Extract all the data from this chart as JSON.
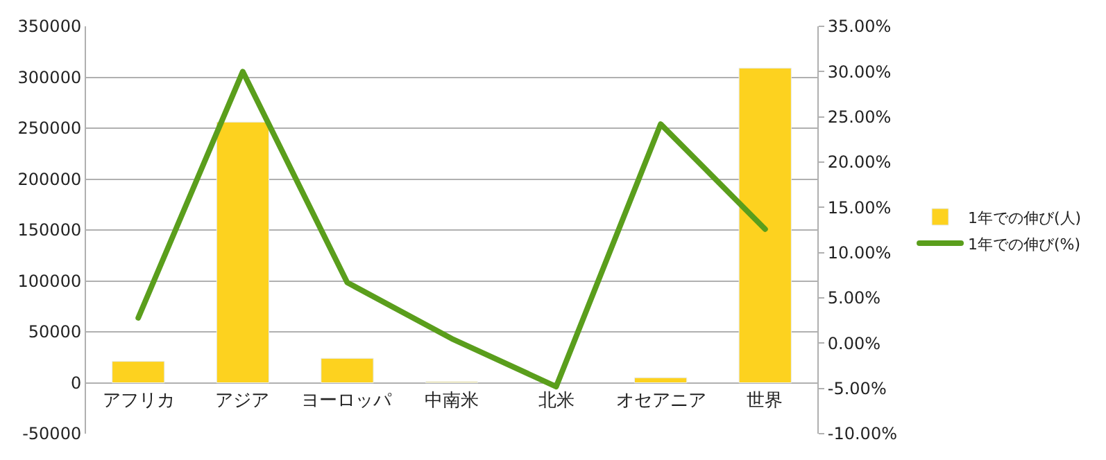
{
  "chart_data": {
    "type": "bar",
    "categories": [
      "アフリカ",
      "アジア",
      "ヨーロッパ",
      "中南米",
      "北米",
      "オセアニア",
      "世界"
    ],
    "series": [
      {
        "name": "1年での伸び(人)",
        "color": "#fdd21f",
        "values": [
          21000,
          256000,
          24000,
          1000,
          null,
          5000,
          309000
        ]
      },
      {
        "name": "1年での伸び(%)",
        "type": "line",
        "axis": "y2",
        "color": "#5a9e1c",
        "values": [
          2.8,
          30.0,
          6.7,
          0.5,
          -4.8,
          24.2,
          12.6
        ]
      }
    ],
    "ylim": [
      -50000,
      350000
    ],
    "yticks": [
      -50000,
      0,
      50000,
      100000,
      150000,
      200000,
      250000,
      300000,
      350000
    ],
    "y2lim": [
      -10,
      35
    ],
    "y2ticks": [
      {
        "value": -10,
        "label": "-10.00%"
      },
      {
        "value": -5,
        "label": "-5.00%"
      },
      {
        "value": 0,
        "label": "0.00%"
      },
      {
        "value": 5,
        "label": "5.00%"
      },
      {
        "value": 10,
        "label": "10.00%"
      },
      {
        "value": 15,
        "label": "15.00%"
      },
      {
        "value": 20,
        "label": "20.00%"
      },
      {
        "value": 25,
        "label": "25.00%"
      },
      {
        "value": 30,
        "label": "30.00%"
      },
      {
        "value": 35,
        "label": "35.00%"
      }
    ],
    "grid": "y",
    "legend": "right",
    "marker": "none",
    "line_style": "solid"
  }
}
